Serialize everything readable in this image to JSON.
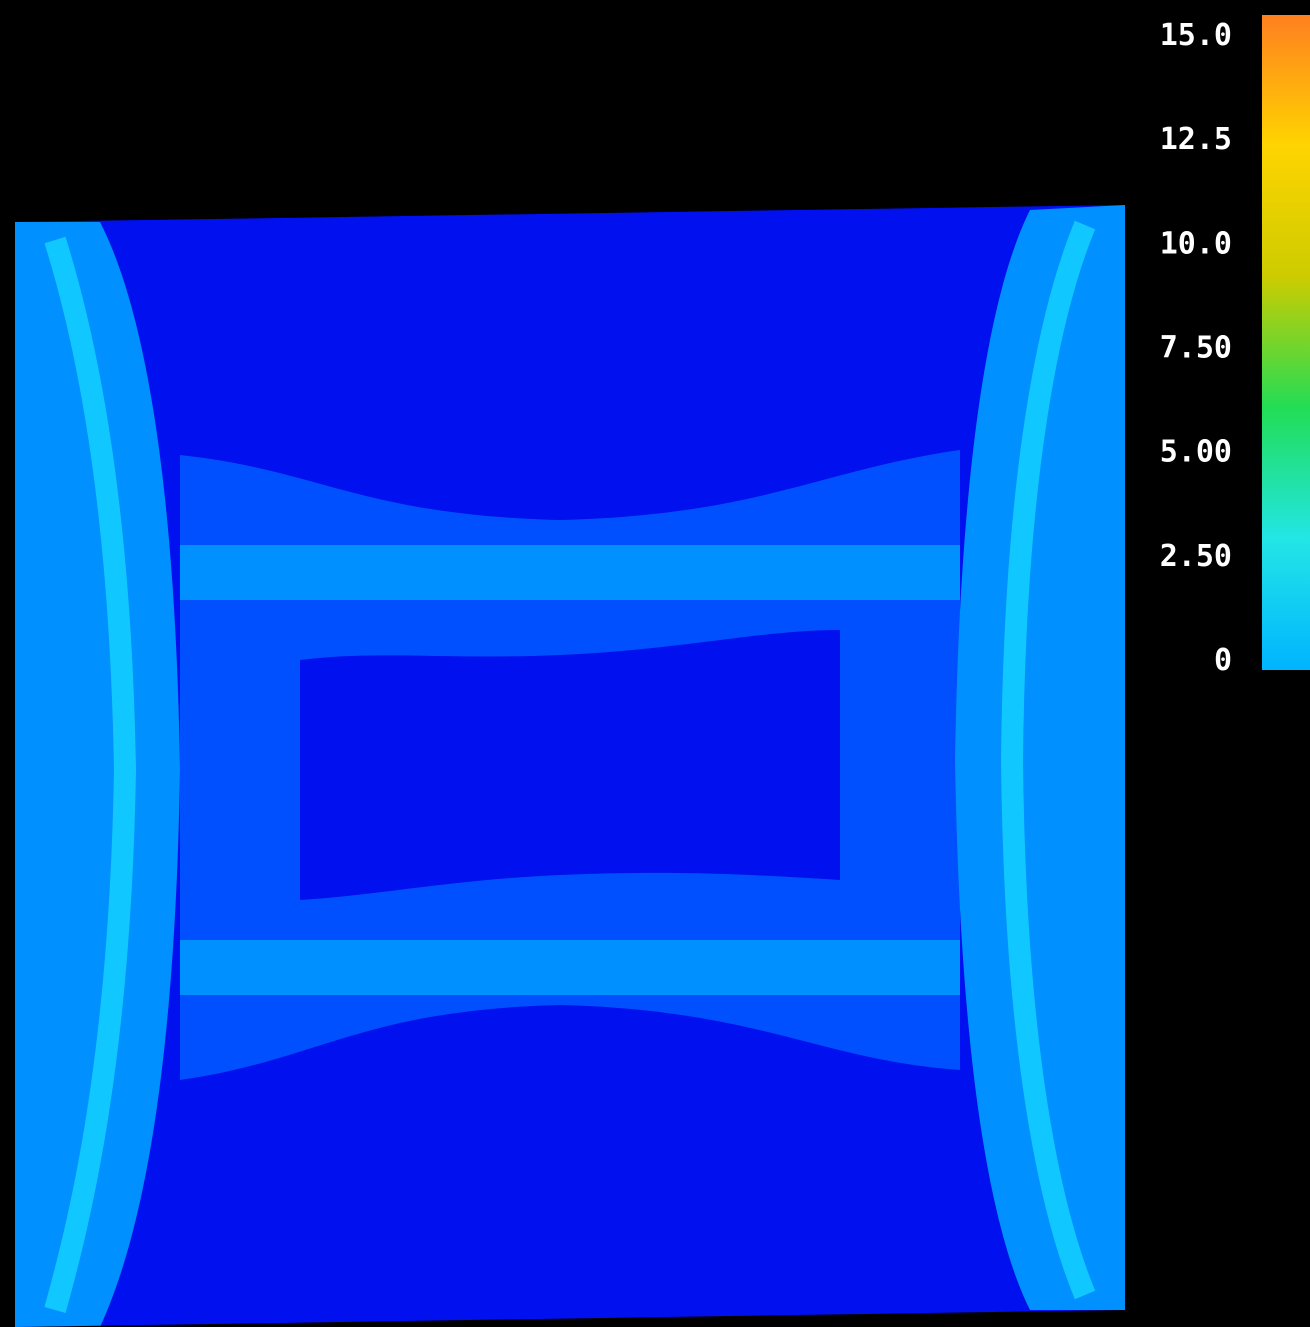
{
  "chart_data": {
    "type": "heatmap",
    "title": "",
    "xlabel": "",
    "ylabel": "",
    "colormap": "jet",
    "colorbar": {
      "placement": "right",
      "ticks": [
        {
          "value": 0,
          "label": "0"
        },
        {
          "value": 1,
          "label": "2.50"
        },
        {
          "value": 2,
          "label": "5.00"
        },
        {
          "value": 3,
          "label": "7.50"
        },
        {
          "value": 4,
          "label": "10.0"
        },
        {
          "value": 5,
          "label": "12.5"
        },
        {
          "value": 6,
          "label": "15.0"
        }
      ],
      "range": [
        0,
        6
      ]
    },
    "levels": {
      "background": 0.0,
      "body": 0.35,
      "band_outer": 0.7,
      "band_inner": 1.1,
      "ring": 1.25
    }
  },
  "colors": {
    "background": "#000000",
    "body": "#0010ee",
    "band_outer": "#0050ff",
    "band_inner": "#0090ff",
    "ring": "#10c8ff",
    "colorbar_stops": [
      "#00b4ff",
      "#22e6e6",
      "#22dd55",
      "#cccc00",
      "#ffd400",
      "#ff8020"
    ]
  }
}
